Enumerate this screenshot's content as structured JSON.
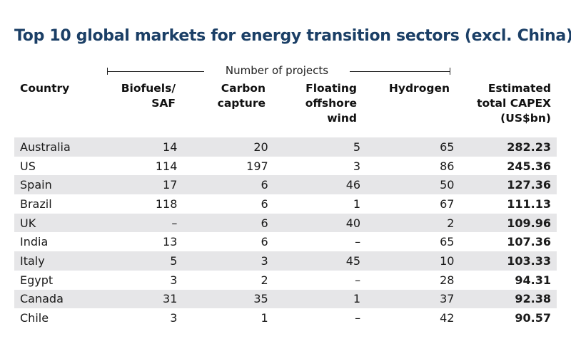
{
  "title": "Top 10 global markets for energy transition sectors (excl. China)",
  "chart_data": {
    "type": "table",
    "title": "Top 10 global markets for energy transition sectors (excl. China)",
    "spanner": "Number of projects",
    "headers": [
      [
        "Country"
      ],
      [
        "Biofuels/",
        "SAF"
      ],
      [
        "Carbon",
        "capture"
      ],
      [
        "Floating",
        "offshore",
        "wind"
      ],
      [
        "Hydrogen"
      ],
      [
        "Estimated",
        "total CAPEX",
        "(US$bn)"
      ]
    ],
    "rows": [
      [
        "Australia",
        "14",
        "20",
        "5",
        "65",
        "282.23"
      ],
      [
        "US",
        "114",
        "197",
        "3",
        "86",
        "245.36"
      ],
      [
        "Spain",
        "17",
        "6",
        "46",
        "50",
        "127.36"
      ],
      [
        "Brazil",
        "118",
        "6",
        "1",
        "67",
        "111.13"
      ],
      [
        "UK",
        "–",
        "6",
        "40",
        "2",
        "109.96"
      ],
      [
        "India",
        "13",
        "6",
        "–",
        "65",
        "107.36"
      ],
      [
        "Italy",
        "5",
        "3",
        "45",
        "10",
        "103.33"
      ],
      [
        "Egypt",
        "3",
        "2",
        "–",
        "28",
        "94.31"
      ],
      [
        "Canada",
        "31",
        "35",
        "1",
        "37",
        "92.38"
      ],
      [
        "Chile",
        "3",
        "1",
        "–",
        "42",
        "90.57"
      ]
    ]
  },
  "colors": {
    "title": "#1b3f66",
    "row_band": "#e6e6e8",
    "text": "#1a1a1a"
  }
}
